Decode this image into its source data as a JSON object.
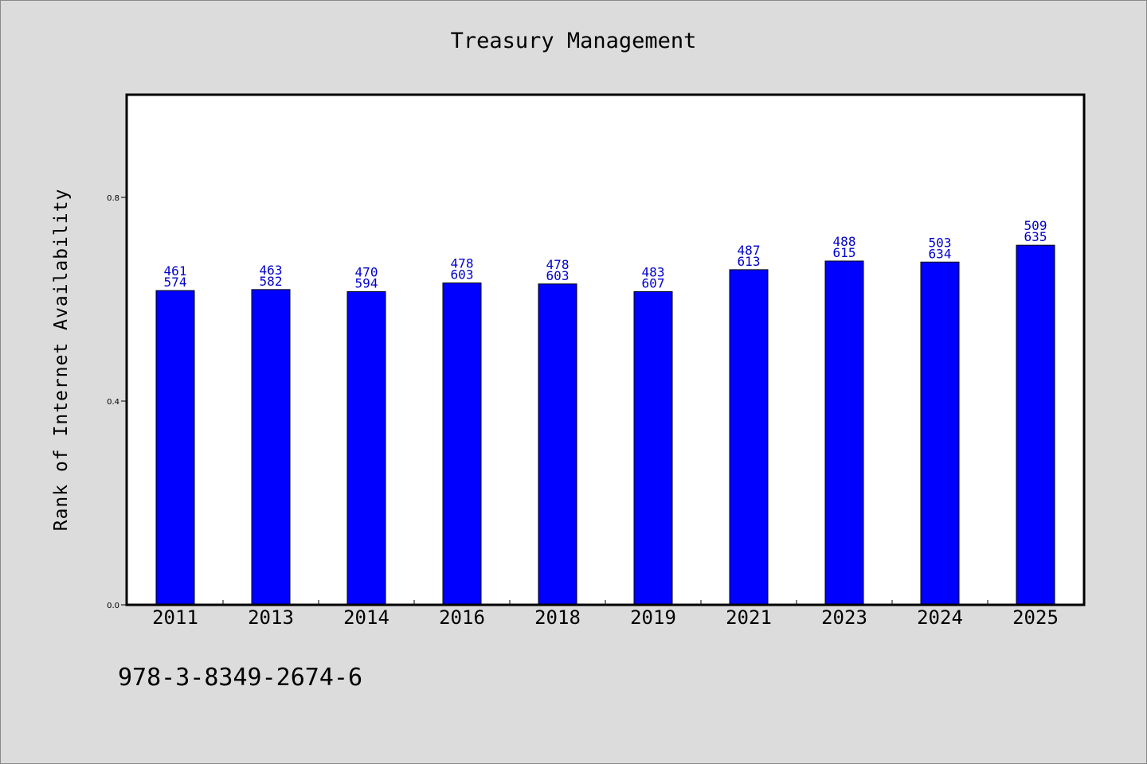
{
  "chart_data": {
    "type": "bar",
    "title": "Treasury Management",
    "ylabel": "Rank of Internet Availability",
    "xlabel": "",
    "categories": [
      "2011",
      "2013",
      "2014",
      "2016",
      "2018",
      "2019",
      "2021",
      "2023",
      "2024",
      "2025"
    ],
    "values": [
      0.617,
      0.619,
      0.615,
      0.632,
      0.63,
      0.615,
      0.658,
      0.675,
      0.673,
      0.706
    ],
    "data_labels": [
      [
        "461",
        "574"
      ],
      [
        "463",
        "582"
      ],
      [
        "470",
        "594"
      ],
      [
        "478",
        "603"
      ],
      [
        "478",
        "603"
      ],
      [
        "483",
        "607"
      ],
      [
        "487",
        "613"
      ],
      [
        "488",
        "615"
      ],
      [
        "503",
        "634"
      ],
      [
        "509",
        "635"
      ]
    ],
    "yticks": [
      0.0,
      0.4,
      0.8
    ],
    "ytick_labels": [
      "0.0",
      "0.4",
      "0.8"
    ],
    "ylim": [
      0,
      1.0
    ],
    "grid": false,
    "bar_color": "#0000ff",
    "label_color": "#0000cc",
    "background": "#dcdcdc",
    "plot_background": "#ffffff"
  },
  "footer": {
    "code": "978-3-8349-2674-6"
  }
}
